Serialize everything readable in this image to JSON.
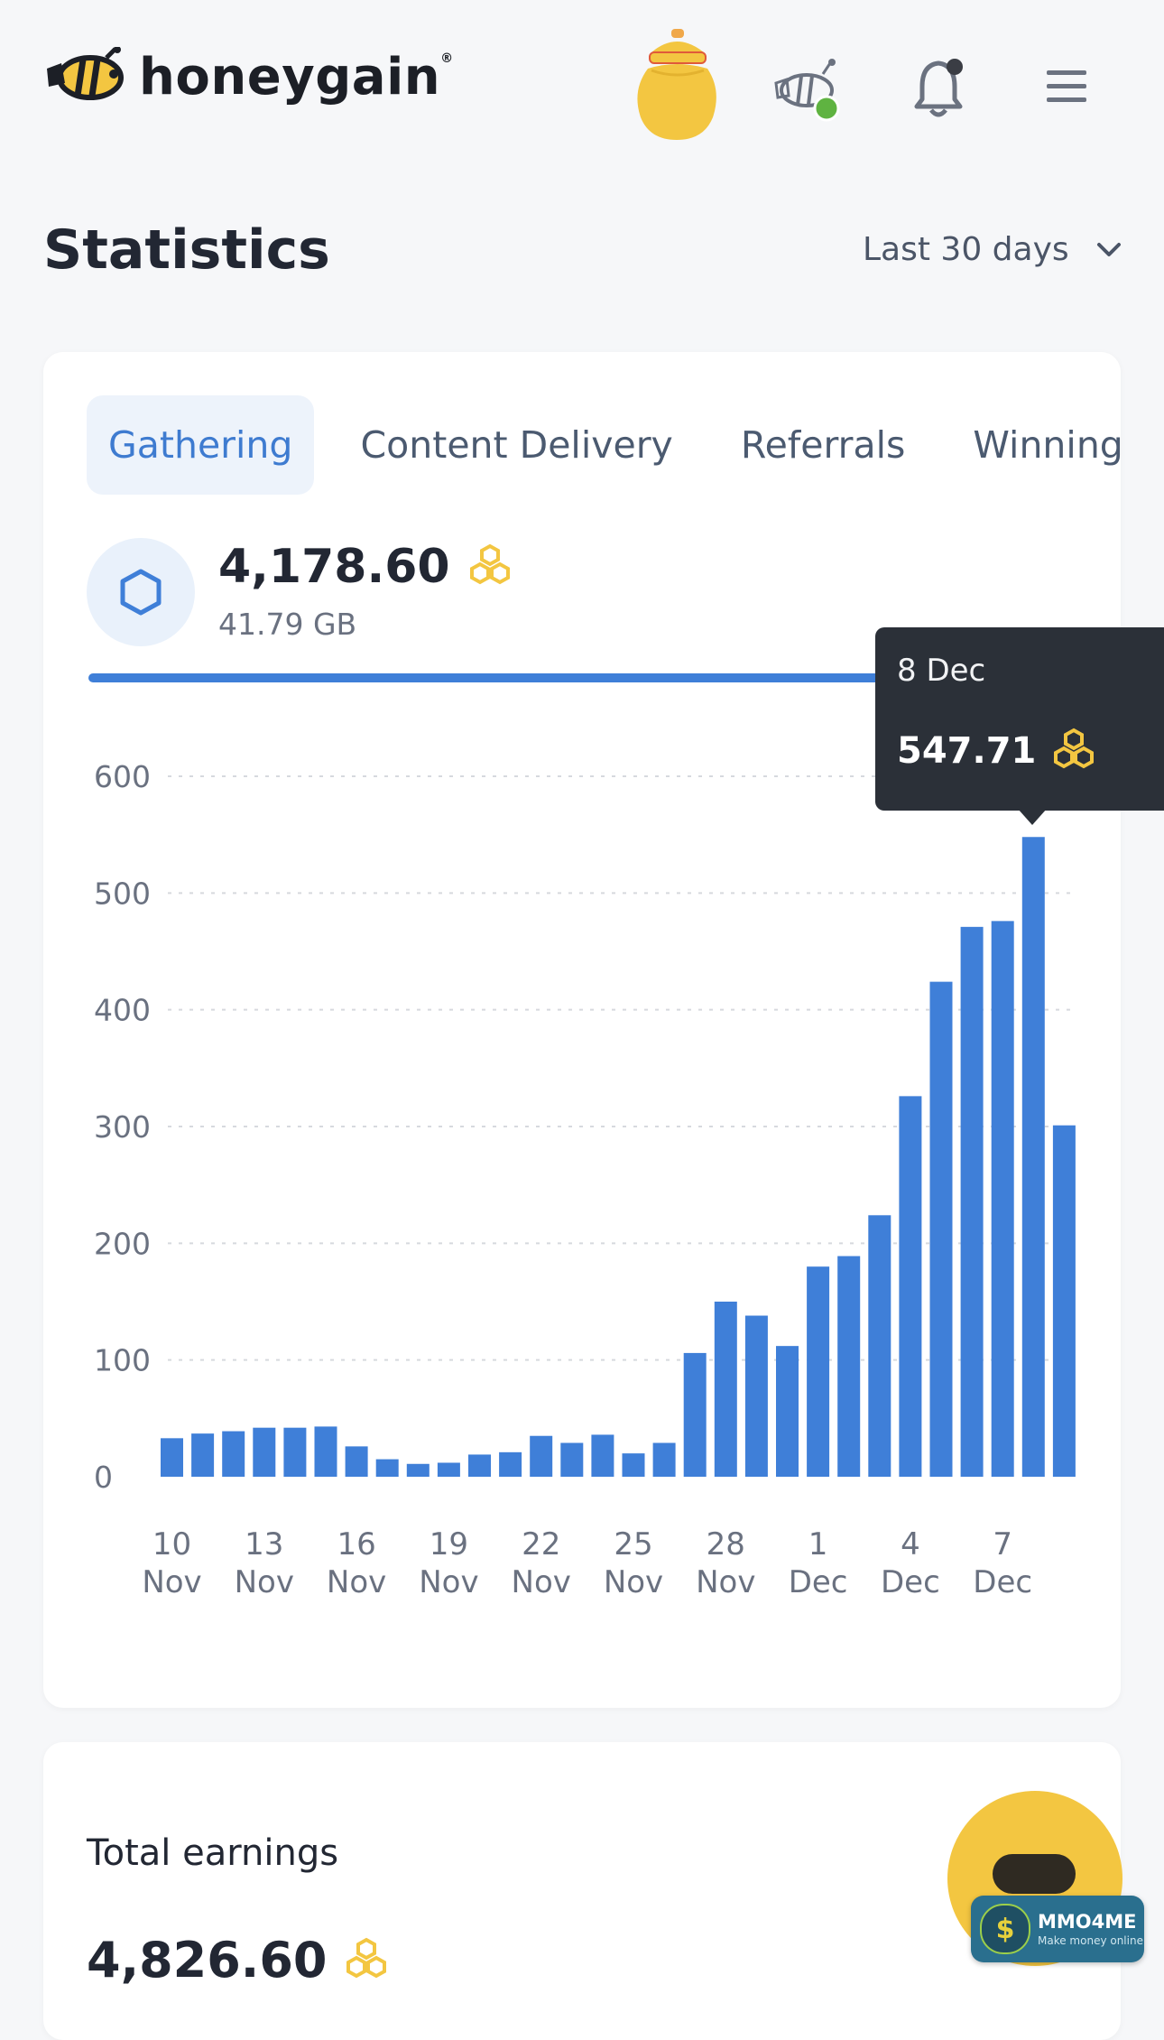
{
  "header": {
    "logo_text": "honeygain",
    "logo_reg": "®"
  },
  "page": {
    "title": "Statistics",
    "range_label": "Last 30 days"
  },
  "tabs": [
    {
      "label": "Gathering",
      "active": true
    },
    {
      "label": "Content Delivery",
      "active": false
    },
    {
      "label": "Referrals",
      "active": false
    },
    {
      "label": "Winnings",
      "active": false
    }
  ],
  "stat": {
    "value": "4,178.60",
    "sub": "41.79 GB"
  },
  "tooltip": {
    "date": "8 Dec",
    "value": "547.71"
  },
  "chart_data": {
    "type": "bar",
    "title": "",
    "xlabel": "",
    "ylabel": "",
    "ylim": [
      0,
      600
    ],
    "yticks": [
      "600",
      "500",
      "400",
      "300",
      "200",
      "100",
      "0"
    ],
    "categories": [
      "10 Nov",
      "11 Nov",
      "12 Nov",
      "13 Nov",
      "14 Nov",
      "15 Nov",
      "16 Nov",
      "17 Nov",
      "18 Nov",
      "19 Nov",
      "20 Nov",
      "21 Nov",
      "22 Nov",
      "23 Nov",
      "24 Nov",
      "25 Nov",
      "26 Nov",
      "27 Nov",
      "28 Nov",
      "29 Nov",
      "30 Nov",
      "1 Dec",
      "2 Dec",
      "3 Dec",
      "4 Dec",
      "5 Dec",
      "6 Dec",
      "7 Dec",
      "8 Dec",
      "9 Dec"
    ],
    "values": [
      33,
      37,
      39,
      42,
      42,
      43,
      26,
      15,
      11,
      12,
      19,
      21,
      35,
      29,
      36,
      20,
      29,
      106,
      150,
      138,
      112,
      180,
      189,
      224,
      326,
      424,
      471,
      476,
      548,
      301
    ],
    "x_tick_labels": [
      {
        "day": "10",
        "month": "Nov"
      },
      {
        "day": "13",
        "month": "Nov"
      },
      {
        "day": "16",
        "month": "Nov"
      },
      {
        "day": "19",
        "month": "Nov"
      },
      {
        "day": "22",
        "month": "Nov"
      },
      {
        "day": "25",
        "month": "Nov"
      },
      {
        "day": "28",
        "month": "Nov"
      },
      {
        "day": "1",
        "month": "Dec"
      },
      {
        "day": "4",
        "month": "Dec"
      },
      {
        "day": "7",
        "month": "Dec"
      }
    ],
    "bar_color": "#3f7fd8",
    "grid": true
  },
  "earnings": {
    "label": "Total earnings",
    "value": "4,826.60"
  },
  "badge": {
    "title": "MMO4ME",
    "subtitle": "Make money online"
  },
  "colors": {
    "accent": "#3f7fd8",
    "honey": "#f3c641",
    "tooltip_bg": "#2b3038"
  },
  "icons": {
    "logo": "bee-icon",
    "jar": "honey-jar-icon",
    "bee_status": "bee-status-icon",
    "notifications": "bell-icon",
    "menu": "hamburger-menu-icon",
    "currency": "honeycomb-icon",
    "stat": "hexagon-icon"
  }
}
